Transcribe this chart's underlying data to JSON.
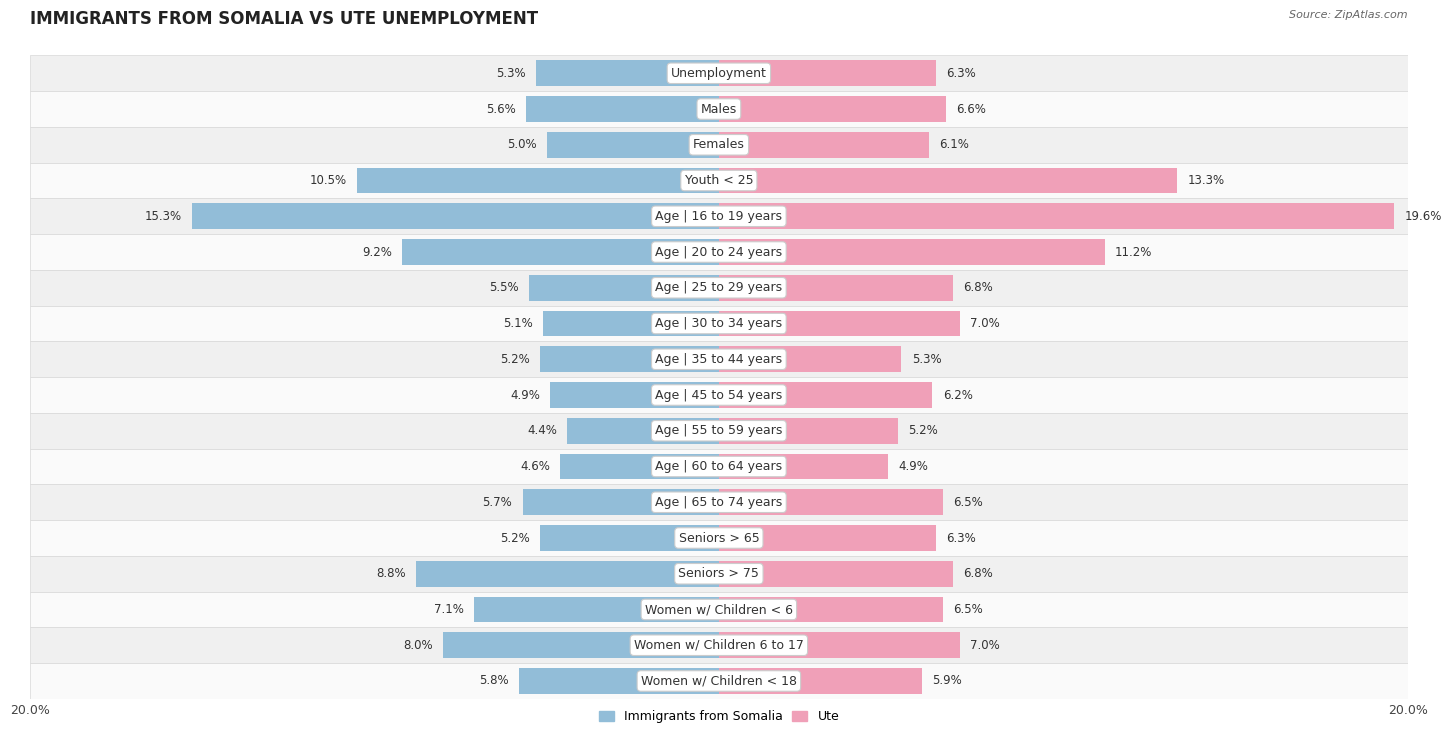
{
  "title": "IMMIGRANTS FROM SOMALIA VS UTE UNEMPLOYMENT",
  "source": "Source: ZipAtlas.com",
  "categories": [
    "Unemployment",
    "Males",
    "Females",
    "Youth < 25",
    "Age | 16 to 19 years",
    "Age | 20 to 24 years",
    "Age | 25 to 29 years",
    "Age | 30 to 34 years",
    "Age | 35 to 44 years",
    "Age | 45 to 54 years",
    "Age | 55 to 59 years",
    "Age | 60 to 64 years",
    "Age | 65 to 74 years",
    "Seniors > 65",
    "Seniors > 75",
    "Women w/ Children < 6",
    "Women w/ Children 6 to 17",
    "Women w/ Children < 18"
  ],
  "somalia_values": [
    5.3,
    5.6,
    5.0,
    10.5,
    15.3,
    9.2,
    5.5,
    5.1,
    5.2,
    4.9,
    4.4,
    4.6,
    5.7,
    5.2,
    8.8,
    7.1,
    8.0,
    5.8
  ],
  "ute_values": [
    6.3,
    6.6,
    6.1,
    13.3,
    19.6,
    11.2,
    6.8,
    7.0,
    5.3,
    6.2,
    5.2,
    4.9,
    6.5,
    6.3,
    6.8,
    6.5,
    7.0,
    5.9
  ],
  "somalia_color": "#92bdd8",
  "ute_color": "#f0a0b8",
  "bar_height": 0.72,
  "xlim": 20.0,
  "row_color_odd": "#f0f0f0",
  "row_color_even": "#fafafa",
  "row_border_color": "#d8d8d8",
  "legend_somalia": "Immigrants from Somalia",
  "legend_ute": "Ute",
  "title_fontsize": 12,
  "label_fontsize": 9,
  "value_fontsize": 8.5,
  "axis_label_fontsize": 9
}
